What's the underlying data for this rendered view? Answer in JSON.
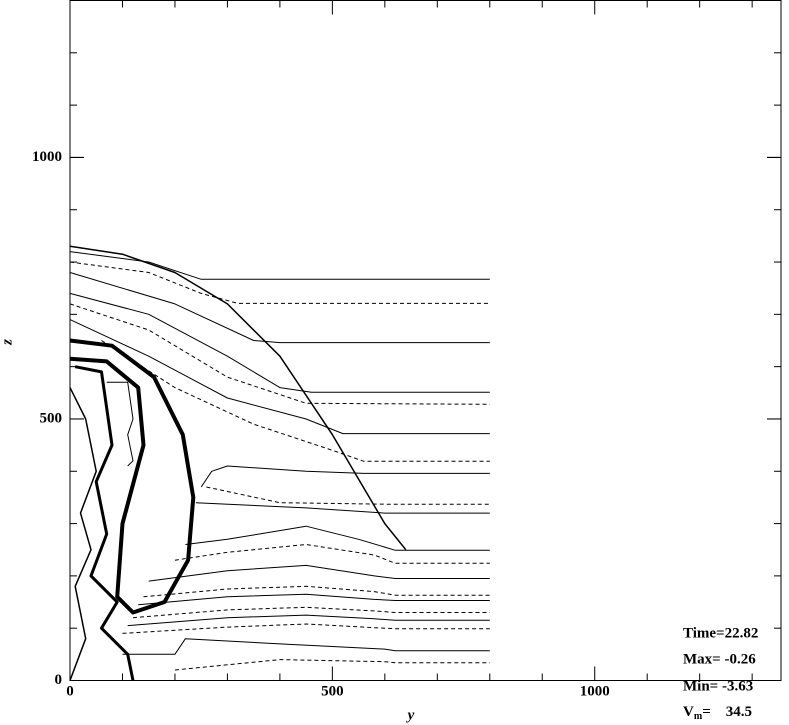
{
  "chart_data": {
    "type": "contour",
    "xlabel": "y",
    "ylabel": "z",
    "xlim": [
      0,
      1355
    ],
    "ylim": [
      0,
      1300
    ],
    "xticks": [
      0,
      500,
      1000
    ],
    "yticks": [
      0,
      500,
      1000
    ],
    "minor_ticks": [
      100,
      200,
      300,
      400,
      600,
      700,
      800,
      900,
      1100,
      1200,
      1300
    ],
    "annotations": [
      "Time=22.82",
      "Max= -0.26",
      "Min= -3.63"
    ],
    "vmax": {
      "symbol": "V",
      "subscript": "m",
      "text": "=    34.5"
    },
    "color": "#000000",
    "contours": [
      {
        "style": "solid",
        "width": 1.5,
        "x": [
          0,
          100,
          200,
          300,
          400,
          500,
          600,
          640
        ],
        "y": [
          830,
          815,
          780,
          720,
          620,
          470,
          300,
          250
        ]
      },
      {
        "style": "solid",
        "width": 1,
        "x": [
          0,
          150,
          250,
          800
        ],
        "y": [
          820,
          800,
          767,
          767
        ]
      },
      {
        "style": "dashed",
        "width": 1,
        "x": [
          0,
          150,
          250,
          320,
          800
        ],
        "y": [
          800,
          780,
          740,
          721,
          721
        ]
      },
      {
        "style": "solid",
        "width": 1,
        "x": [
          0,
          200,
          350,
          400,
          800
        ],
        "y": [
          780,
          720,
          650,
          646,
          646
        ]
      },
      {
        "style": "solid",
        "width": 1,
        "x": [
          0,
          150,
          300,
          400,
          460,
          800
        ],
        "y": [
          740,
          700,
          620,
          560,
          551,
          551
        ]
      },
      {
        "style": "dashed",
        "width": 1,
        "x": [
          0,
          150,
          300,
          450,
          800
        ],
        "y": [
          720,
          670,
          580,
          530,
          528
        ]
      },
      {
        "style": "solid",
        "width": 1,
        "x": [
          0,
          150,
          300,
          450,
          520,
          800
        ],
        "y": [
          690,
          620,
          540,
          500,
          472,
          472
        ]
      },
      {
        "style": "dashed",
        "width": 1,
        "x": [
          60,
          200,
          350,
          500,
          560,
          800
        ],
        "y": [
          650,
          560,
          490,
          440,
          419,
          419
        ]
      },
      {
        "style": "solid",
        "width": 1,
        "x": [
          250,
          270,
          300,
          450,
          560,
          800
        ],
        "y": [
          370,
          400,
          410,
          400,
          396,
          396
        ]
      },
      {
        "style": "dashed",
        "width": 1,
        "x": [
          260,
          400,
          600,
          800
        ],
        "y": [
          370,
          340,
          337,
          337
        ]
      },
      {
        "style": "solid",
        "width": 1,
        "x": [
          240,
          450,
          600,
          800
        ],
        "y": [
          340,
          330,
          320,
          320
        ]
      },
      {
        "style": "solid",
        "width": 1,
        "x": [
          220,
          300,
          450,
          550,
          600,
          620,
          800
        ],
        "y": [
          260,
          270,
          295,
          270,
          255,
          249,
          249
        ]
      },
      {
        "style": "dashed",
        "width": 1,
        "x": [
          200,
          300,
          450,
          580,
          620,
          800
        ],
        "y": [
          230,
          245,
          260,
          240,
          224,
          224
        ]
      },
      {
        "style": "solid",
        "width": 1,
        "x": [
          150,
          300,
          450,
          580,
          620,
          800
        ],
        "y": [
          190,
          210,
          220,
          200,
          195,
          195
        ]
      },
      {
        "style": "dashed",
        "width": 1,
        "x": [
          140,
          300,
          450,
          580,
          620,
          800
        ],
        "y": [
          160,
          175,
          180,
          170,
          163,
          163
        ]
      },
      {
        "style": "solid",
        "width": 1,
        "x": [
          130,
          300,
          450,
          580,
          620,
          800
        ],
        "y": [
          145,
          160,
          165,
          155,
          153,
          153
        ]
      },
      {
        "style": "dashed",
        "width": 1,
        "x": [
          120,
          300,
          450,
          580,
          620,
          800
        ],
        "y": [
          120,
          135,
          140,
          133,
          130,
          130
        ]
      },
      {
        "style": "solid",
        "width": 1,
        "x": [
          110,
          300,
          450,
          580,
          620,
          800
        ],
        "y": [
          105,
          120,
          125,
          118,
          115,
          115
        ]
      },
      {
        "style": "dashed",
        "width": 1,
        "x": [
          100,
          300,
          450,
          580,
          620,
          800
        ],
        "y": [
          90,
          102,
          108,
          101,
          99,
          99
        ]
      },
      {
        "style": "solid",
        "width": 1,
        "x": [
          100,
          200,
          220,
          400,
          600,
          620,
          800
        ],
        "y": [
          50,
          50,
          80,
          70,
          60,
          57,
          57
        ]
      },
      {
        "style": "dashed",
        "width": 1,
        "x": [
          200,
          400,
          600,
          620,
          800
        ],
        "y": [
          20,
          40,
          36,
          34,
          34
        ]
      },
      {
        "style": "solid",
        "width": 4,
        "x": [
          0,
          80,
          160,
          215,
          235,
          225,
          180,
          120,
          90,
          100,
          140,
          130,
          70,
          0
        ],
        "y": [
          650,
          640,
          580,
          470,
          350,
          230,
          150,
          130,
          160,
          300,
          450,
          560,
          610,
          615
        ]
      },
      {
        "style": "solid",
        "width": 3,
        "x": [
          10,
          60,
          80,
          50,
          70,
          40,
          90,
          60,
          110,
          120
        ],
        "y": [
          600,
          590,
          450,
          380,
          280,
          200,
          150,
          100,
          50,
          0
        ]
      },
      {
        "style": "solid",
        "width": 1.5,
        "x": [
          0,
          30,
          50,
          20,
          40,
          10,
          30,
          0
        ],
        "y": [
          560,
          500,
          400,
          320,
          250,
          180,
          80,
          0
        ]
      },
      {
        "style": "solid",
        "width": 1,
        "x": [
          70,
          110,
          120,
          110,
          120,
          110
        ],
        "y": [
          570,
          570,
          500,
          470,
          420,
          410
        ]
      }
    ]
  }
}
